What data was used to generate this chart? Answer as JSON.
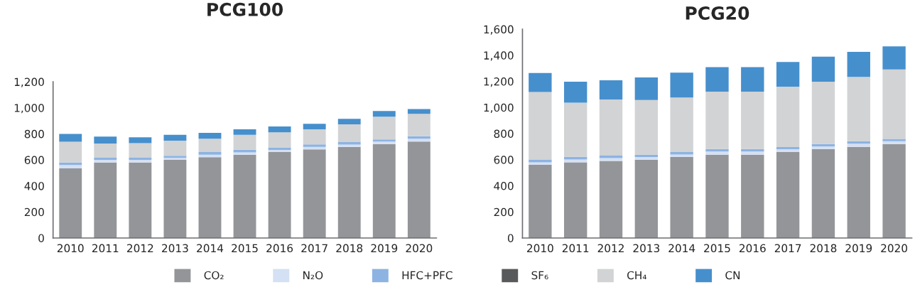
{
  "chart_data": [
    {
      "type": "bar",
      "title": "PCG100",
      "stacked": true,
      "legend": "bottom",
      "grid": false,
      "categories": [
        "2010",
        "2011",
        "2012",
        "2013",
        "2014",
        "2015",
        "2016",
        "2017",
        "2018",
        "2019",
        "2020"
      ],
      "ylim": [
        0,
        1200
      ],
      "yticks": [
        0,
        200,
        400,
        600,
        800,
        {
          "value": 1000,
          "label": "1,000"
        },
        {
          "value": 1200,
          "label": "1,200"
        }
      ],
      "series": [
        {
          "name": "CO₂",
          "color": "#939598",
          "values": [
            535,
            580,
            580,
            600,
            620,
            640,
            660,
            680,
            700,
            720,
            740
          ]
        },
        {
          "name": "N₂O",
          "color": "#d4e0f3",
          "values": [
            25,
            20,
            20,
            15,
            20,
            18,
            17,
            20,
            18,
            20,
            22
          ]
        },
        {
          "name": "HFC+PFC",
          "color": "#8db3e2",
          "values": [
            19,
            17,
            17,
            16,
            20,
            20,
            19,
            19,
            18,
            17,
            19
          ]
        },
        {
          "name": "SF₆",
          "color": "#58595b",
          "values": [
            null,
            null,
            null,
            null,
            null,
            null,
            null,
            null,
            null,
            null,
            null
          ]
        },
        {
          "name": "CH₄",
          "color": "#d1d3d4",
          "values": [
            160,
            108,
            112,
            117,
            103,
            114,
            116,
            116,
            137,
            174,
            172
          ]
        },
        {
          "name": "CN",
          "color": "#468fcd",
          "values": [
            60,
            54,
            45,
            44,
            45,
            43,
            45,
            42,
            42,
            45,
            38
          ]
        }
      ]
    },
    {
      "type": "bar",
      "title": "PCG20",
      "stacked": true,
      "grid": false,
      "categories": [
        "2010",
        "2011",
        "2012",
        "2013",
        "2014",
        "2015",
        "2016",
        "2017",
        "2018",
        "2019",
        "2020"
      ],
      "ylim": [
        0,
        1600
      ],
      "yticks": [
        0,
        200,
        400,
        600,
        800,
        {
          "value": 1000,
          "label": "1,000"
        },
        {
          "value": 1200,
          "label": "1,200"
        },
        {
          "value": 1400,
          "label": "1,400"
        },
        {
          "value": 1600,
          "label": "1,600"
        }
      ],
      "series": [
        {
          "color": "#939598",
          "values": [
            560,
            580,
            590,
            600,
            620,
            638,
            638,
            660,
            682,
            698,
            720
          ]
        },
        {
          "color": "#d4e0f3",
          "values": [
            20,
            22,
            22,
            20,
            20,
            25,
            25,
            20,
            20,
            25,
            22
          ]
        },
        {
          "color": "#8db3e2",
          "values": [
            19,
            20,
            20,
            18,
            19,
            19,
            19,
            17,
            18,
            18,
            17
          ]
        },
        {
          "color": "#58595b",
          "values": [
            null,
            null,
            null,
            null,
            null,
            null,
            null,
            null,
            null,
            null,
            null
          ]
        },
        {
          "color": "#d1d3d4",
          "values": [
            520,
            415,
            430,
            420,
            418,
            440,
            440,
            462,
            477,
            494,
            532
          ]
        },
        {
          "color": "#468fcd",
          "values": [
            145,
            160,
            147,
            172,
            190,
            187,
            187,
            190,
            192,
            191,
            178
          ]
        }
      ]
    }
  ]
}
